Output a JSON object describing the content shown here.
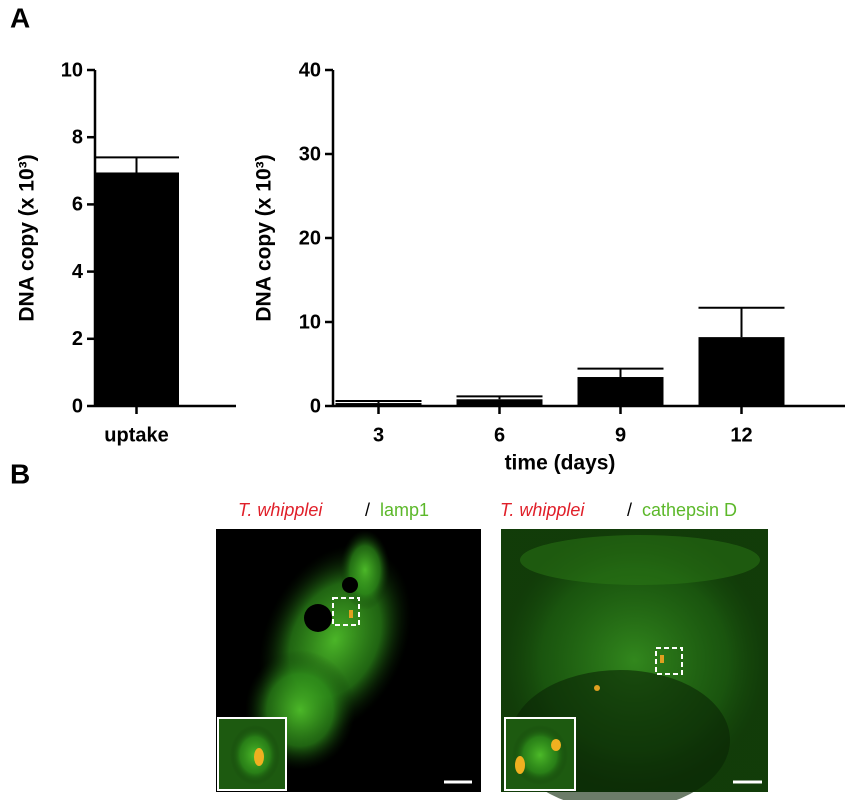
{
  "panels": {
    "a": "A",
    "b": "B"
  },
  "chart_data": [
    {
      "type": "bar",
      "ylabel": "DNA copy (x 10³)",
      "categories": [
        "uptake"
      ],
      "values": [
        6.95
      ],
      "errors": [
        0.45
      ],
      "color": "#000000",
      "ylim": [
        0,
        10
      ],
      "yticks": [
        0,
        2,
        4,
        6,
        8,
        10
      ]
    },
    {
      "type": "bar",
      "ylabel": "DNA copy (x 10³)",
      "xlabel": "time (days)",
      "categories": [
        "3",
        "6",
        "9",
        "12"
      ],
      "values": [
        0.35,
        0.8,
        3.45,
        8.2
      ],
      "errors": [
        0.25,
        0.35,
        1.0,
        3.5
      ],
      "color": "#000000",
      "ylim": [
        0,
        40
      ],
      "yticks": [
        0,
        10,
        20,
        30,
        40
      ]
    }
  ],
  "images": [
    {
      "organism": "T. whipplei",
      "separator": "/",
      "stain": "lamp1"
    },
    {
      "organism": "T. whipplei",
      "separator": "/",
      "stain": "cathepsin D"
    }
  ]
}
